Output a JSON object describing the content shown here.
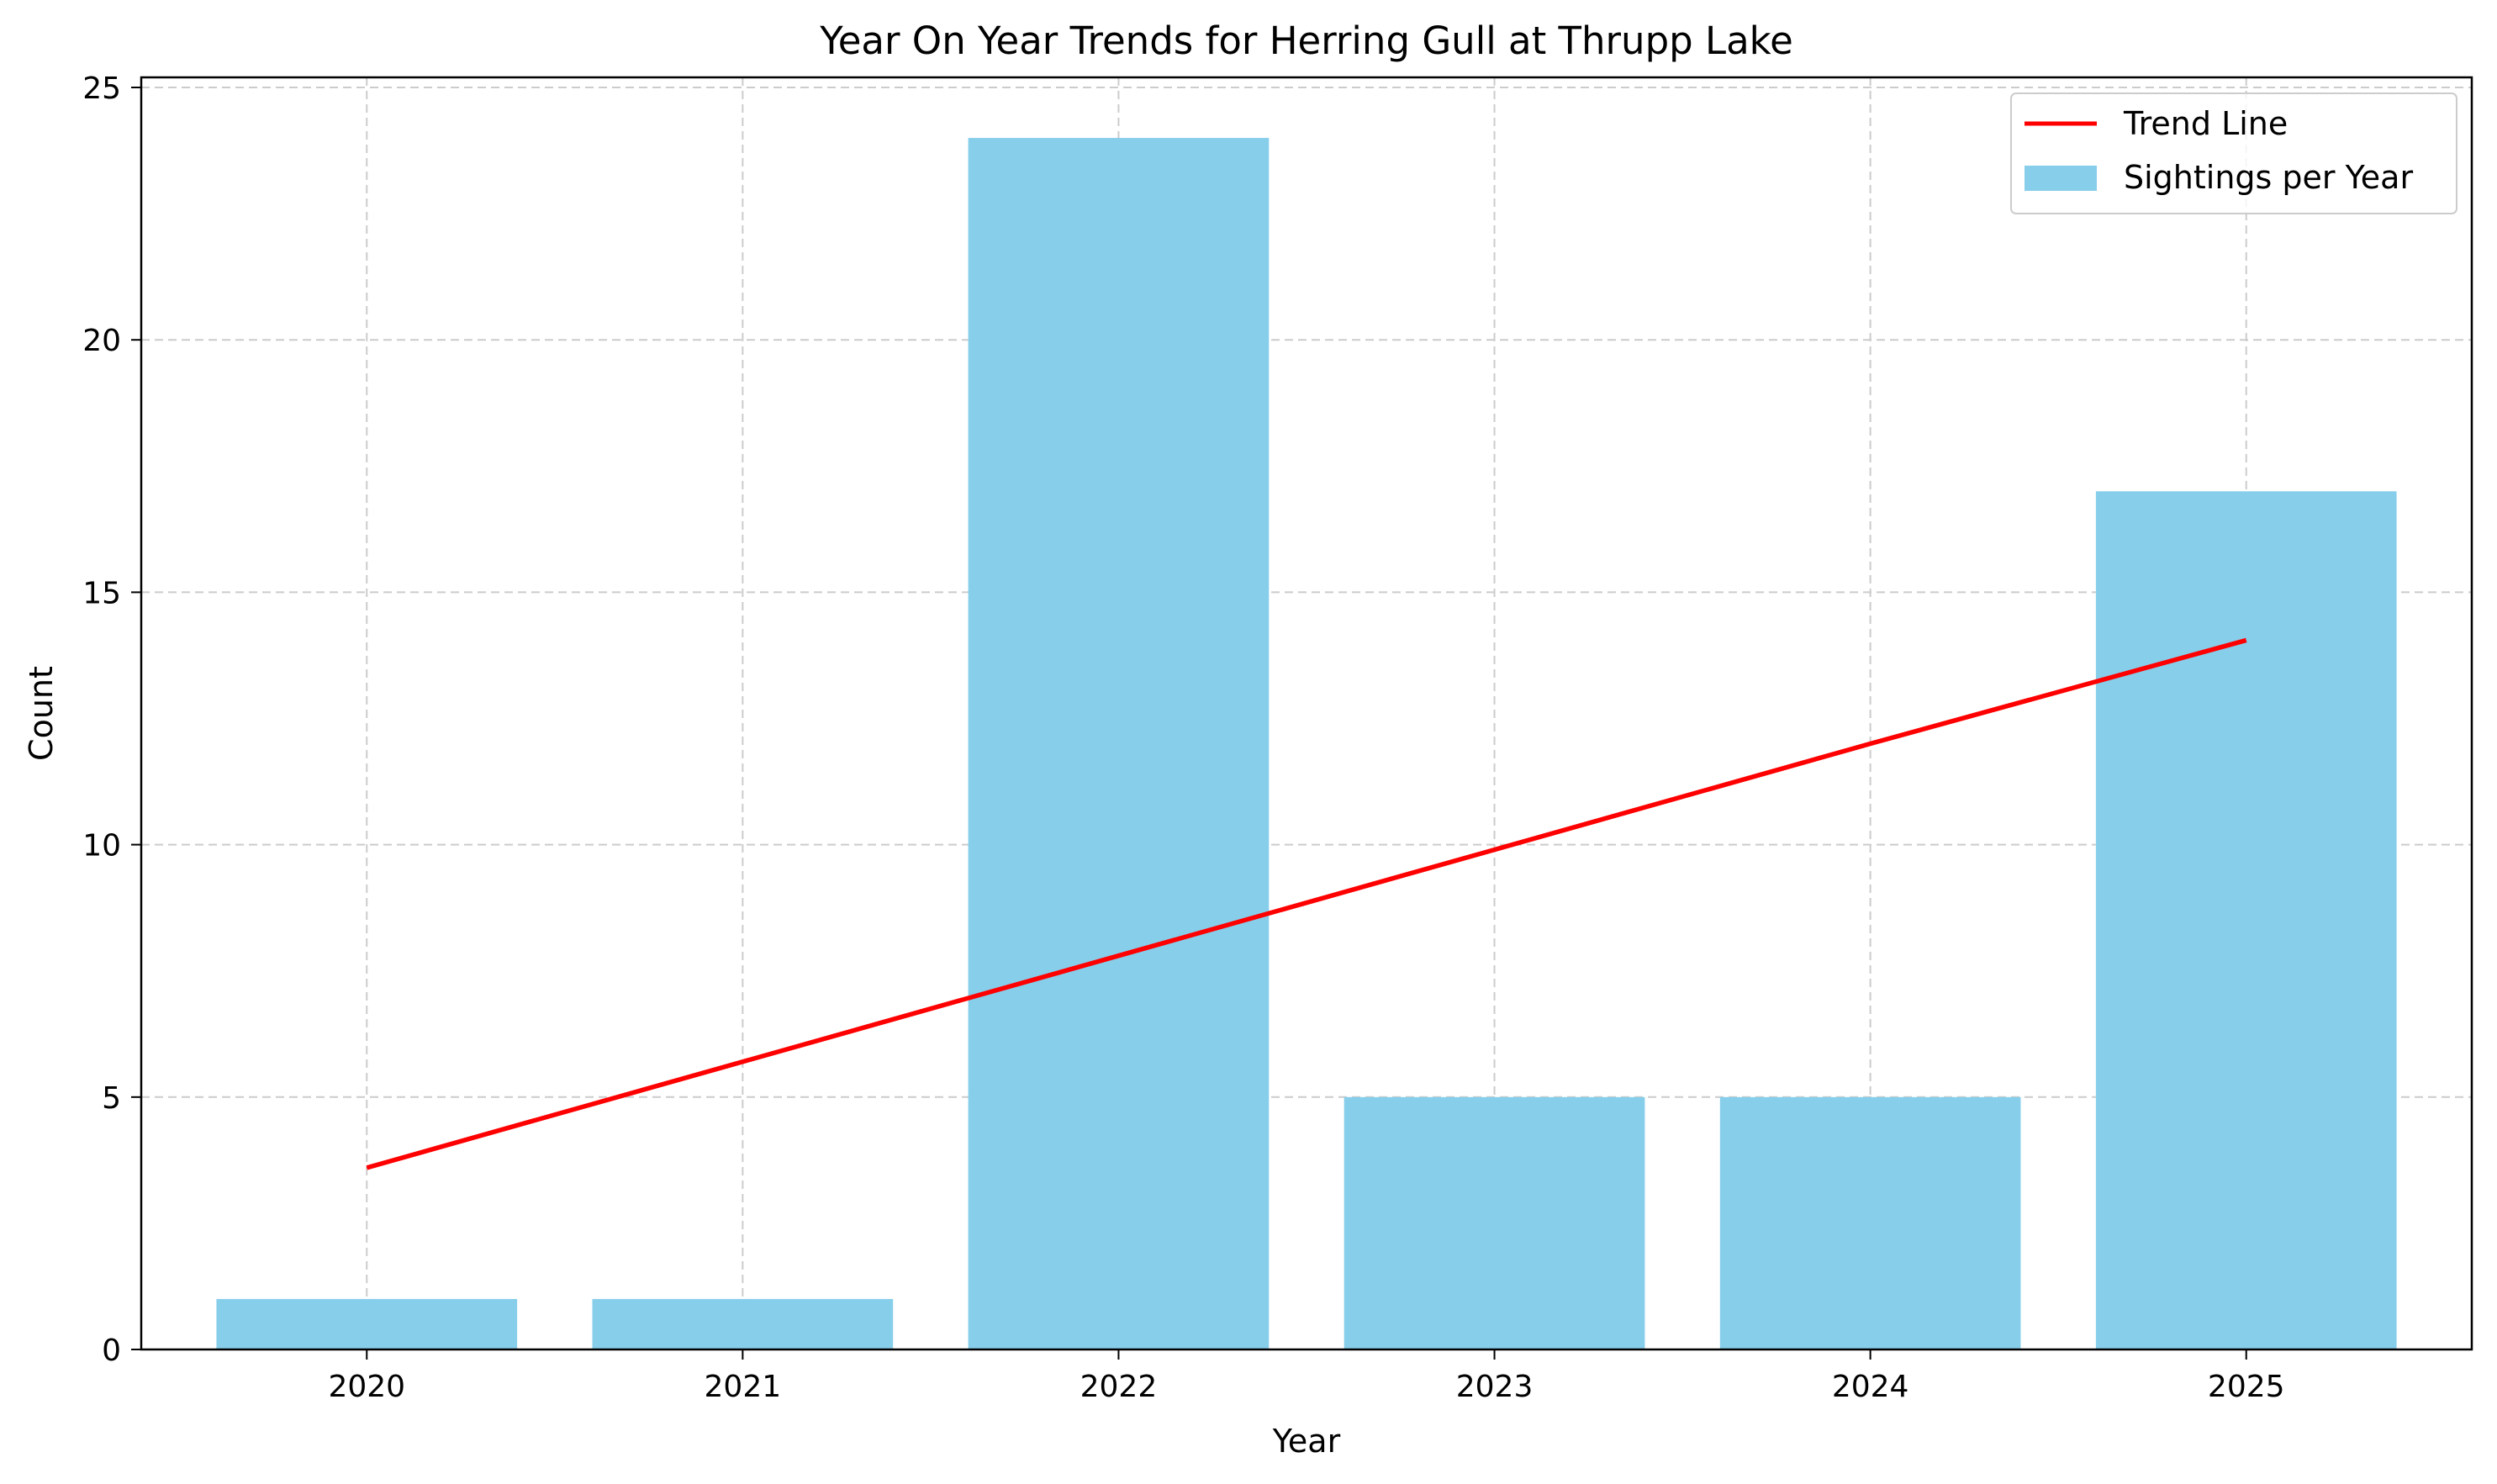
{
  "chart_data": {
    "type": "bar",
    "title": "Year On Year Trends for Herring Gull at Thrupp Lake",
    "xlabel": "Year",
    "ylabel": "Count",
    "categories": [
      "2020",
      "2021",
      "2022",
      "2023",
      "2024",
      "2025"
    ],
    "series": [
      {
        "name": "Sightings per Year",
        "kind": "bar",
        "color": "#87CEEB",
        "values": [
          1,
          1,
          24,
          5,
          5,
          17
        ]
      },
      {
        "name": "Trend Line",
        "kind": "line",
        "color": "#FF0000",
        "values": [
          3.6,
          5.7,
          7.8,
          9.9,
          12.0,
          14.05
        ]
      }
    ],
    "ylim": [
      0,
      25.2
    ],
    "yticks": [
      0,
      5,
      10,
      15,
      20,
      25
    ],
    "grid": true,
    "legend_position": "top-right"
  }
}
